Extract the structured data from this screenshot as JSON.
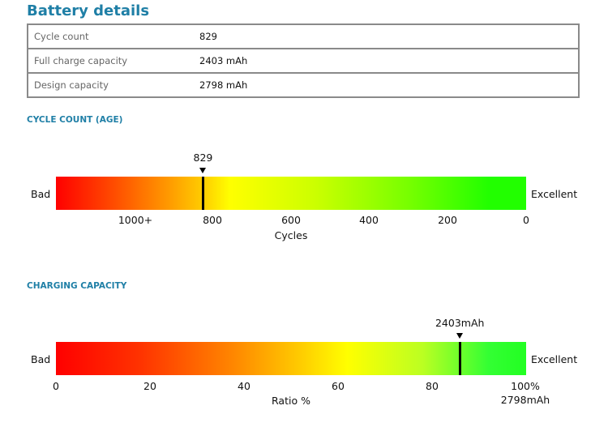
{
  "page_title": "Battery details",
  "info_rows": [
    {
      "label": "Cycle count",
      "value": "829"
    },
    {
      "label": "Full charge capacity",
      "value": "2403 mAh"
    },
    {
      "label": "Design capacity",
      "value": "2798 mAh"
    }
  ],
  "cycle_section": {
    "title": "CYCLE COUNT (AGE)",
    "left_label": "Bad",
    "right_label": "Excellent",
    "marker_label": "829",
    "marker_value": 829,
    "ticks": [
      "1000+",
      "800",
      "600",
      "400",
      "200",
      "0"
    ],
    "axis_title": "Cycles"
  },
  "capacity_section": {
    "title": "CHARGING CAPACITY",
    "left_label": "Bad",
    "right_label": "Excellent",
    "marker_label": "2403mAh",
    "marker_ratio_percent": 85.9,
    "ticks": [
      "0",
      "20",
      "40",
      "60",
      "80",
      "100%"
    ],
    "end_label": "2798mAh",
    "axis_title": "Ratio %"
  }
}
